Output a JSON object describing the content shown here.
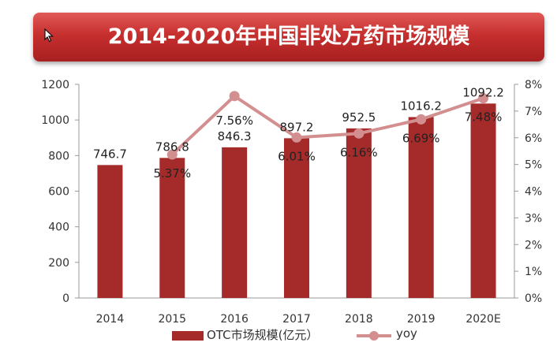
{
  "title": "2014-2020年中国非处方药市场规模",
  "colors": {
    "bar": "#a52a2a",
    "line": "#d38f8f",
    "banner": "#c62f2e"
  },
  "chart_data": {
    "type": "bar",
    "categories": [
      "2014",
      "2015",
      "2016",
      "2017",
      "2018",
      "2019",
      "2020E"
    ],
    "series": [
      {
        "name": "OTC市场规模(亿元）",
        "type": "bar",
        "values": [
          746.7,
          786.8,
          846.3,
          897.2,
          952.5,
          1016.2,
          1092.2
        ],
        "labels": [
          "746.7",
          "786.8",
          "846.3",
          "897.2",
          "952.5",
          "1016.2",
          "1092.2"
        ]
      },
      {
        "name": "yoy",
        "type": "line",
        "axis": "right",
        "values": [
          null,
          5.37,
          7.56,
          6.01,
          6.16,
          6.69,
          7.48
        ],
        "labels": [
          "",
          "5.37%",
          "7.56%",
          "6.01%",
          "6.16%",
          "6.69%",
          "7.48%"
        ]
      }
    ],
    "y_left": {
      "ylim": [
        0,
        1200
      ],
      "ticks": [
        "0",
        "200",
        "400",
        "600",
        "800",
        "1000",
        "1200"
      ]
    },
    "y_right": {
      "ylim": [
        0,
        8
      ],
      "ticks": [
        "0%",
        "1%",
        "2%",
        "3%",
        "4%",
        "5%",
        "6%",
        "7%",
        "8%"
      ]
    },
    "grid": false,
    "legend_position": "bottom"
  }
}
